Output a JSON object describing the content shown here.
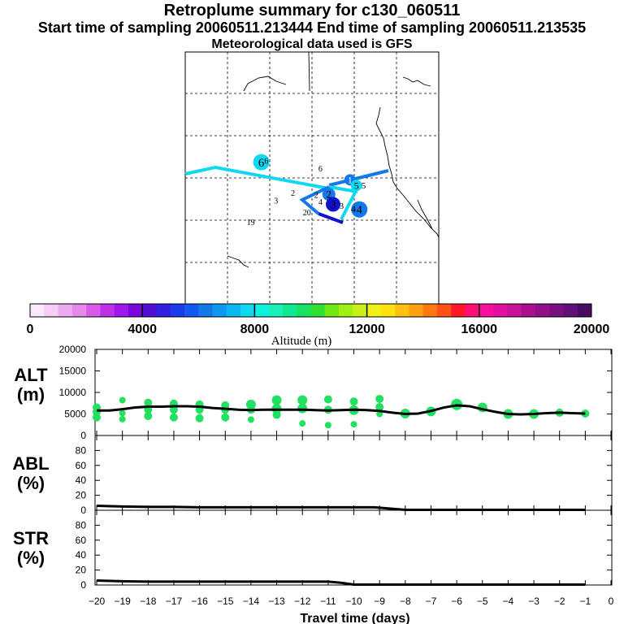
{
  "header": {
    "title": "Retroplume summary for c130_060511",
    "sampling": "Start time of sampling 20060511.213444     End time of sampling 20060511.213535",
    "met": "Meteorological data used is GFS"
  },
  "colors": {
    "bg": "#ffffff",
    "ink": "#000000",
    "alt_marker": "#22e060",
    "track_light": "#10d8f0",
    "track_mid": "#1478e8",
    "track_dark": "#1010d0"
  },
  "map": {
    "labels": [
      {
        "text": "6",
        "lon": -162.0,
        "lat": 32.5,
        "size": 15,
        "color": "#000000",
        "bubble": "#10d8f0",
        "r": 10
      },
      {
        "text": "6",
        "lon": -160.8,
        "lat": 32.7,
        "size": 10,
        "color": "#000000"
      },
      {
        "text": "6",
        "lon": -148.0,
        "lat": 31.5,
        "size": 10,
        "color": "#000000"
      },
      {
        "text": "1",
        "lon": -141.0,
        "lat": 29.7,
        "size": 12,
        "color": "#ffffff",
        "bubble": "#1478e8",
        "r": 7
      },
      {
        "text": "5",
        "lon": -139.5,
        "lat": 28.8,
        "size": 12,
        "color": "#000000",
        "bubble": "#10d8f0",
        "r": 7
      },
      {
        "text": "5",
        "lon": -137.8,
        "lat": 28.8,
        "size": 11,
        "color": "#000000"
      },
      {
        "text": "2",
        "lon": -146.7,
        "lat": 27.6,
        "size": 10,
        "color": "#000000"
      },
      {
        "text": "2",
        "lon": -154.5,
        "lat": 27.6,
        "size": 10,
        "color": "#000000"
      },
      {
        "text": "2",
        "lon": -149.0,
        "lat": 27.3,
        "size": 10,
        "color": "#000000"
      },
      {
        "text": "2",
        "lon": -146.0,
        "lat": 27.4,
        "size": 13,
        "color": "#000000",
        "bubble": "#1478e8",
        "r": 8
      },
      {
        "text": "3",
        "lon": -158.5,
        "lat": 26.4,
        "size": 10,
        "color": "#000000"
      },
      {
        "text": "4",
        "lon": -148.0,
        "lat": 26.2,
        "size": 10,
        "color": "#000000"
      },
      {
        "text": "3",
        "lon": -145.0,
        "lat": 25.8,
        "size": 14,
        "color": "#000000",
        "bubble": "#1010d0",
        "r": 9
      },
      {
        "text": "3",
        "lon": -143.0,
        "lat": 25.6,
        "size": 11,
        "color": "#000000"
      },
      {
        "text": "4",
        "lon": -138.8,
        "lat": 25.0,
        "size": 14,
        "color": "#000000",
        "bubble": "#1478e8",
        "r": 10
      },
      {
        "text": "4",
        "lon": -140.2,
        "lat": 25.1,
        "size": 12,
        "color": "#000000"
      },
      {
        "text": "20",
        "lon": -151.2,
        "lat": 24.5,
        "size": 10,
        "color": "#000000"
      },
      {
        "text": "19",
        "lon": -164.5,
        "lat": 23.0,
        "size": 10,
        "color": "#000000"
      }
    ]
  },
  "colorbar": {
    "ticks": [
      "0",
      "4000",
      "8000",
      "12000",
      "16000",
      "20000"
    ],
    "label": "Altitude (m)",
    "colors": [
      "#fbe9fb",
      "#f5cdf5",
      "#eeaaf0",
      "#e68aea",
      "#d85ae8",
      "#c030e8",
      "#a018e8",
      "#7808e0",
      "#5010d0",
      "#3020e0",
      "#1a3ce8",
      "#1458f0",
      "#1478e8",
      "#1098f0",
      "#08b8f0",
      "#10d8f0",
      "#10f0e0",
      "#18f0b8",
      "#10e890",
      "#18e060",
      "#30e030",
      "#70e818",
      "#a0f010",
      "#c8f018",
      "#eef018",
      "#ffe010",
      "#ffc010",
      "#ffa010",
      "#ff7810",
      "#ff5018",
      "#ff1828",
      "#ff1070",
      "#f810a0",
      "#e010a0",
      "#c81098",
      "#a81090",
      "#901088",
      "#781080",
      "#601078",
      "#480c60"
    ]
  },
  "chart_data": [
    {
      "type": "scatter",
      "name": "ALT",
      "ylabel": "ALT\n(m)",
      "ylim": [
        0,
        20000
      ],
      "yticks": [
        0,
        5000,
        10000,
        15000,
        20000
      ],
      "xlim": [
        -20,
        0
      ],
      "line": {
        "x": [
          -20,
          -19.5,
          -19,
          -18.5,
          -18,
          -17.5,
          -17,
          -16.5,
          -16,
          -15.5,
          -15,
          -14.5,
          -14,
          -13.5,
          -13,
          -12.5,
          -12,
          -11.5,
          -11,
          -10.5,
          -10,
          -9.5,
          -9,
          -8.5,
          -8,
          -7.5,
          -7,
          -6.5,
          -6,
          -5.5,
          -5,
          -4.5,
          -4,
          -3.5,
          -3,
          -2.5,
          -2,
          -1.5,
          -1
        ],
        "y": [
          5800,
          5800,
          6100,
          6500,
          6700,
          6700,
          6800,
          6800,
          6700,
          6400,
          6200,
          6000,
          5900,
          6000,
          6000,
          6000,
          6000,
          5900,
          5800,
          5900,
          6000,
          5900,
          5700,
          5300,
          5000,
          5100,
          5700,
          6500,
          7000,
          6800,
          6100,
          5500,
          5000,
          4900,
          5000,
          5200,
          5300,
          5200,
          5100
        ]
      },
      "markers": {
        "x": [
          -20,
          -20,
          -20,
          -19,
          -19,
          -19,
          -18,
          -18,
          -18,
          -17,
          -17,
          -17,
          -16,
          -16,
          -16,
          -15,
          -15,
          -15,
          -14,
          -14,
          -14,
          -13,
          -13,
          -13,
          -12,
          -12,
          -12,
          -11,
          -11,
          -11,
          -10,
          -10,
          -10,
          -9,
          -9,
          -9,
          -8,
          -7,
          -6,
          -5,
          -4,
          -3,
          -2,
          -1
        ],
        "y": [
          5500,
          6500,
          4200,
          5200,
          8200,
          3800,
          7600,
          6000,
          4500,
          7400,
          6000,
          4200,
          7200,
          6000,
          4000,
          7000,
          6000,
          4200,
          7200,
          6000,
          3700,
          8200,
          6200,
          4800,
          8200,
          6300,
          2800,
          8400,
          6000,
          2400,
          7900,
          5900,
          2600,
          8500,
          6600,
          5000,
          5100,
          5600,
          7200,
          6500,
          5000,
          5000,
          5300,
          5100
        ],
        "size": [
          3,
          3,
          3,
          2,
          2,
          2,
          3,
          3,
          3,
          3,
          3,
          3,
          3,
          3,
          3,
          3,
          3,
          3,
          4,
          3,
          2,
          4,
          4,
          3,
          4,
          4,
          2,
          3,
          3,
          2,
          3,
          4,
          2,
          3,
          3,
          2,
          4,
          4,
          5,
          4,
          4,
          4,
          3,
          3
        ]
      }
    },
    {
      "type": "line",
      "name": "ABL",
      "ylabel": "ABL\n(%)",
      "ylim": [
        0,
        100
      ],
      "yticks": [
        0,
        20,
        40,
        60,
        80
      ],
      "xlim": [
        -20,
        0
      ],
      "x": [
        -20,
        -19,
        -18,
        -17,
        -16,
        -15,
        -14,
        -13,
        -12,
        -11,
        -10,
        -9.2,
        -8,
        -7,
        -6,
        -5,
        -4,
        -3,
        -2,
        -1
      ],
      "y": [
        6,
        5,
        4.5,
        4.5,
        4,
        4,
        4,
        4,
        4,
        4,
        4,
        4,
        0.5,
        0.5,
        0.5,
        0.5,
        0.5,
        0.5,
        0.5,
        0.5
      ]
    },
    {
      "type": "line",
      "name": "STR",
      "ylabel": "STR\n(%)",
      "ylim": [
        0,
        100
      ],
      "yticks": [
        0,
        20,
        40,
        60,
        80
      ],
      "xlim": [
        -20,
        0
      ],
      "x": [
        -20,
        -19,
        -18,
        -17,
        -16,
        -15,
        -14,
        -13,
        -12,
        -11,
        -10.5,
        -10,
        -9,
        -8,
        -7,
        -6,
        -5,
        -4,
        -3,
        -2,
        -1
      ],
      "y": [
        6,
        5,
        4.5,
        4.5,
        4.5,
        4.5,
        4.5,
        4.5,
        4.5,
        4.5,
        3,
        0.5,
        0.5,
        0.5,
        0.5,
        0.5,
        0.5,
        0.5,
        0.5,
        0.5,
        0.5
      ],
      "xlabel": "Travel time (days)",
      "xticks": [
        "−20",
        "−19",
        "−18",
        "−17",
        "−16",
        "−15",
        "−14",
        "−13",
        "−12",
        "−11",
        "−10",
        "−9",
        "−8",
        "−7",
        "−6",
        "−5",
        "−4",
        "−3",
        "−2",
        "−1",
        "0"
      ]
    }
  ]
}
